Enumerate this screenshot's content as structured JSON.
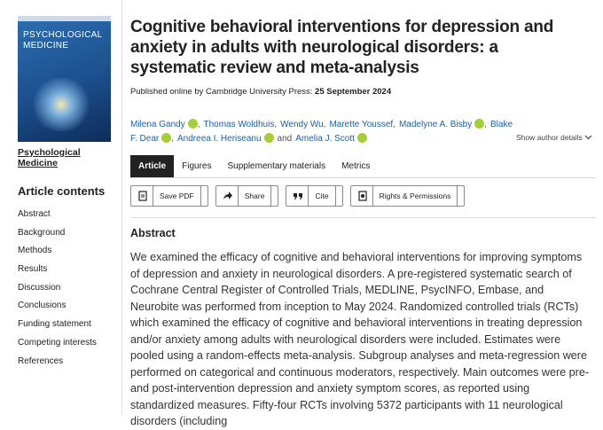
{
  "sidebar": {
    "cover_title": "PSYCHOLOGICAL MEDICINE",
    "journal_link": "Psychological Medicine",
    "contents_heading": "Article contents",
    "contents": [
      "Abstract",
      "Background",
      "Methods",
      "Results",
      "Discussion",
      "Conclusions",
      "Funding statement",
      "Competing interests",
      "References"
    ]
  },
  "article": {
    "title": "Cognitive behavioral interventions for depression and anxiety in adults with neurological disorders: a systematic review and meta-analysis",
    "published_label": "Published online by Cambridge University Press:",
    "published_date": "25 September 2024",
    "authors": [
      {
        "name": "Milena Gandy",
        "orcid": true,
        "after": ","
      },
      {
        "name": "Thomas Woldhuis",
        "orcid": false,
        "after": ","
      },
      {
        "name": "Wendy Wu",
        "orcid": false,
        "after": ","
      },
      {
        "name": "Marette Youssef",
        "orcid": false,
        "after": ","
      },
      {
        "name": "Madelyne A. Bisby",
        "orcid": true,
        "after": ","
      },
      {
        "name": "Blake F. Dear",
        "orcid": true,
        "after": ","
      },
      {
        "name": "Andreea I. Heriseanu",
        "orcid": true,
        "after": "and"
      },
      {
        "name": "Amelia J. Scott",
        "orcid": true
      }
    ],
    "show_author_details": "Show author details",
    "tabs": [
      "Article",
      "Figures",
      "Supplementary materials",
      "Metrics"
    ],
    "active_tab": 0,
    "actions": [
      "Save PDF",
      "Share",
      "Cite",
      "Rights & Permissions"
    ],
    "abstract_heading": "Abstract",
    "abstract": "We examined the efficacy of cognitive and behavioral interventions for improving symptoms of depression and anxiety in neurological disorders. A pre-registered systematic search of Cochrane Central Register of Controlled Trials, MEDLINE, PsycINFO, Embase, and Neurobite was performed from inception to May 2024. Randomized controlled trials (RCTs) which examined the efficacy of cognitive and behavioral interventions in treating depression and/or anxiety among adults with neurological disorders were included. Estimates were pooled using a random-effects meta-analysis. Subgroup analyses and meta-regression were performed on categorical and continuous moderators, respectively. Main outcomes were pre- and post-intervention depression and anxiety symptom scores, as reported using standardized measures. Fifty-four RCTs involving 5372 participants with 11 neurological disorders (including"
  }
}
